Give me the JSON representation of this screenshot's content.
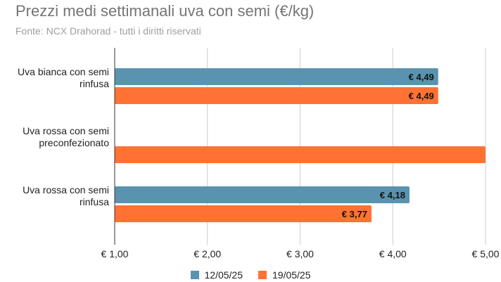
{
  "chart_data": {
    "type": "bar",
    "orientation": "horizontal",
    "title": "Prezzi medi settimanali uva con semi (€/kg)",
    "subtitle": "Fonte: NCX Drahorad - tutti i diritti riservati",
    "categories": [
      [
        "Uva bianca con semi",
        "rinfusa"
      ],
      [
        "Uva rossa con semi",
        "preconfezionato"
      ],
      [
        "Uva rossa con semi",
        "rinfusa"
      ]
    ],
    "series": [
      {
        "name": "12/05/25",
        "color": "#5a93af",
        "values": [
          4.49,
          null,
          4.18
        ],
        "labels": [
          "€ 4,49",
          "",
          "€ 4,18"
        ]
      },
      {
        "name": "19/05/25",
        "color": "#ff7233",
        "values": [
          4.49,
          5.0,
          3.77
        ],
        "labels": [
          "€ 4,49",
          "",
          "€ 3,77"
        ]
      }
    ],
    "xlim": [
      1.0,
      5.0
    ],
    "xticks": [
      1,
      2,
      3,
      4,
      5
    ],
    "xtick_labels": [
      "€ 1,00",
      "€ 2,00",
      "€ 3,00",
      "€ 4,00",
      "€ 5,00"
    ],
    "grid": true,
    "legend_position": "bottom"
  }
}
